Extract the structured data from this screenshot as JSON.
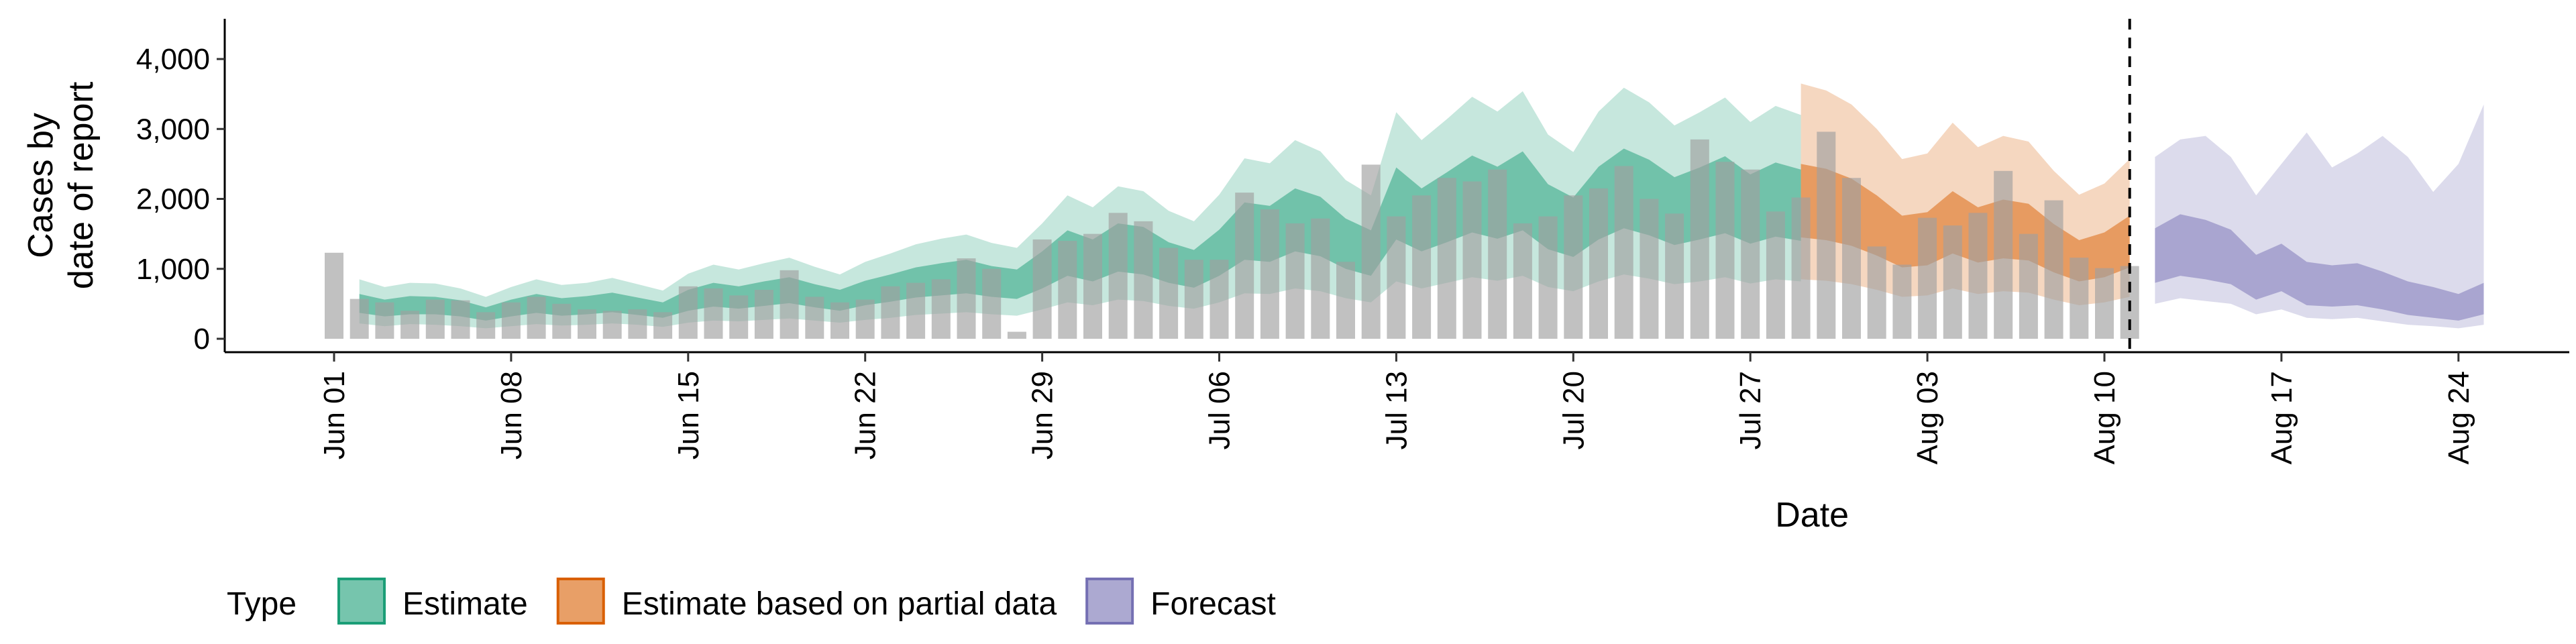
{
  "chart_data": {
    "type": "bar",
    "xlabel": "Date",
    "ylabel": [
      "Cases by",
      "date of report"
    ],
    "ylim": [
      0,
      4500
    ],
    "y_ticks": [
      0,
      1000,
      2000,
      3000,
      4000
    ],
    "y_tick_labels": [
      "0",
      "1,000",
      "2,000",
      "3,000",
      "4,000"
    ],
    "x_tick_labels": [
      "Jun 01",
      "Jun 08",
      "Jun 15",
      "Jun 22",
      "Jun 29",
      "Jul 06",
      "Jul 13",
      "Jul 20",
      "Jul 27",
      "Aug 03",
      "Aug 10",
      "Aug 17",
      "Aug 24"
    ],
    "start_date": "2020-06-01",
    "grid": false,
    "reference_line_date": "2020-08-11",
    "observed_cases": {
      "dates": [
        "2020-06-01",
        "2020-06-02",
        "2020-06-03",
        "2020-06-04",
        "2020-06-05",
        "2020-06-06",
        "2020-06-07",
        "2020-06-08",
        "2020-06-09",
        "2020-06-10",
        "2020-06-11",
        "2020-06-12",
        "2020-06-13",
        "2020-06-14",
        "2020-06-15",
        "2020-06-16",
        "2020-06-17",
        "2020-06-18",
        "2020-06-19",
        "2020-06-20",
        "2020-06-21",
        "2020-06-22",
        "2020-06-23",
        "2020-06-24",
        "2020-06-25",
        "2020-06-26",
        "2020-06-27",
        "2020-06-28",
        "2020-06-29",
        "2020-06-30",
        "2020-07-01",
        "2020-07-02",
        "2020-07-03",
        "2020-07-04",
        "2020-07-05",
        "2020-07-06",
        "2020-07-07",
        "2020-07-08",
        "2020-07-09",
        "2020-07-10",
        "2020-07-11",
        "2020-07-12",
        "2020-07-13",
        "2020-07-14",
        "2020-07-15",
        "2020-07-16",
        "2020-07-17",
        "2020-07-18",
        "2020-07-19",
        "2020-07-20",
        "2020-07-21",
        "2020-07-22",
        "2020-07-23",
        "2020-07-24",
        "2020-07-25",
        "2020-07-26",
        "2020-07-27",
        "2020-07-28",
        "2020-07-29",
        "2020-07-30",
        "2020-07-31",
        "2020-08-01",
        "2020-08-02",
        "2020-08-03",
        "2020-08-04",
        "2020-08-05",
        "2020-08-06",
        "2020-08-07",
        "2020-08-08",
        "2020-08-09",
        "2020-08-10",
        "2020-08-11"
      ],
      "values": [
        1230,
        570,
        520,
        400,
        560,
        550,
        380,
        520,
        600,
        500,
        420,
        400,
        420,
        380,
        750,
        720,
        620,
        700,
        980,
        600,
        520,
        560,
        750,
        800,
        850,
        1150,
        1000,
        100,
        1420,
        1400,
        1500,
        1800,
        1680,
        1300,
        1130,
        1130,
        2090,
        1850,
        1650,
        1720,
        1100,
        2490,
        1750,
        2050,
        2300,
        2250,
        2420,
        1650,
        1750,
        2050,
        2150,
        2470,
        2000,
        1790,
        2850,
        2530,
        2420,
        1820,
        2020,
        2960,
        2300,
        1320,
        1060,
        1730,
        1620,
        1800,
        2400,
        1500,
        1980,
        1160,
        1010,
        1040
      ]
    },
    "series": [
      {
        "name": "Estimate",
        "color": "#1b9e77",
        "dates": [
          "2020-06-02",
          "2020-06-03",
          "2020-06-04",
          "2020-06-05",
          "2020-06-06",
          "2020-06-07",
          "2020-06-08",
          "2020-06-09",
          "2020-06-10",
          "2020-06-11",
          "2020-06-12",
          "2020-06-13",
          "2020-06-14",
          "2020-06-15",
          "2020-06-16",
          "2020-06-17",
          "2020-06-18",
          "2020-06-19",
          "2020-06-20",
          "2020-06-21",
          "2020-06-22",
          "2020-06-23",
          "2020-06-24",
          "2020-06-25",
          "2020-06-26",
          "2020-06-27",
          "2020-06-28",
          "2020-06-29",
          "2020-06-30",
          "2020-07-01",
          "2020-07-02",
          "2020-07-03",
          "2020-07-04",
          "2020-07-05",
          "2020-07-06",
          "2020-07-07",
          "2020-07-08",
          "2020-07-09",
          "2020-07-10",
          "2020-07-11",
          "2020-07-12",
          "2020-07-13",
          "2020-07-14",
          "2020-07-15",
          "2020-07-16",
          "2020-07-17",
          "2020-07-18",
          "2020-07-19",
          "2020-07-20",
          "2020-07-21",
          "2020-07-22",
          "2020-07-23",
          "2020-07-24",
          "2020-07-25",
          "2020-07-26",
          "2020-07-27",
          "2020-07-28",
          "2020-07-29"
        ],
        "lower_90": [
          220,
          180,
          210,
          200,
          180,
          150,
          180,
          210,
          190,
          200,
          220,
          200,
          170,
          230,
          260,
          250,
          270,
          290,
          260,
          230,
          270,
          300,
          340,
          360,
          380,
          350,
          330,
          420,
          520,
          480,
          560,
          540,
          470,
          430,
          520,
          650,
          640,
          720,
          680,
          580,
          520,
          820,
          720,
          800,
          880,
          830,
          900,
          740,
          680,
          820,
          920,
          860,
          780,
          820,
          880,
          790,
          850,
          820
        ],
        "lower_50": [
          370,
          320,
          350,
          350,
          320,
          260,
          320,
          370,
          330,
          350,
          380,
          340,
          300,
          400,
          460,
          430,
          470,
          510,
          450,
          400,
          480,
          530,
          590,
          620,
          650,
          600,
          570,
          720,
          900,
          820,
          960,
          920,
          800,
          730,
          900,
          1130,
          1100,
          1250,
          1180,
          1000,
          900,
          1420,
          1250,
          1380,
          1520,
          1430,
          1550,
          1280,
          1170,
          1420,
          1580,
          1480,
          1340,
          1420,
          1510,
          1360,
          1460,
          1400
        ],
        "upper_50": [
          640,
          560,
          610,
          600,
          550,
          450,
          560,
          640,
          580,
          610,
          660,
          590,
          520,
          700,
          800,
          750,
          820,
          880,
          780,
          700,
          830,
          920,
          1020,
          1080,
          1130,
          1040,
          990,
          1250,
          1550,
          1420,
          1650,
          1600,
          1380,
          1270,
          1560,
          1950,
          1900,
          2150,
          2030,
          1720,
          1550,
          2450,
          2150,
          2380,
          2620,
          2460,
          2680,
          2210,
          2020,
          2460,
          2720,
          2560,
          2310,
          2450,
          2610,
          2350,
          2520,
          2420
        ],
        "upper_90": [
          850,
          740,
          800,
          790,
          720,
          600,
          740,
          850,
          770,
          800,
          870,
          780,
          690,
          930,
          1060,
          990,
          1080,
          1160,
          1030,
          920,
          1100,
          1220,
          1350,
          1430,
          1490,
          1370,
          1300,
          1650,
          2050,
          1880,
          2180,
          2110,
          1830,
          1680,
          2060,
          2580,
          2510,
          2840,
          2680,
          2270,
          2050,
          3240,
          2840,
          3140,
          3460,
          3250,
          3540,
          2920,
          2670,
          3250,
          3590,
          3380,
          3050,
          3240,
          3450,
          3100,
          3330,
          3200
        ]
      },
      {
        "name": "Estimate based on partial data",
        "color": "#d95f02",
        "dates": [
          "2020-07-29",
          "2020-07-30",
          "2020-07-31",
          "2020-08-01",
          "2020-08-02",
          "2020-08-03",
          "2020-08-04",
          "2020-08-05",
          "2020-08-06",
          "2020-08-07",
          "2020-08-08",
          "2020-08-09",
          "2020-08-10",
          "2020-08-11"
        ],
        "lower_90": [
          850,
          830,
          780,
          700,
          600,
          620,
          720,
          640,
          680,
          660,
          560,
          480,
          520,
          600
        ],
        "lower_50": [
          1450,
          1410,
          1330,
          1190,
          1020,
          1050,
          1220,
          1090,
          1150,
          1120,
          950,
          820,
          880,
          1020
        ],
        "upper_50": [
          2500,
          2430,
          2290,
          2050,
          1760,
          1810,
          2110,
          1880,
          1990,
          1930,
          1640,
          1410,
          1520,
          1760
        ],
        "upper_90": [
          3650,
          3550,
          3350,
          3000,
          2570,
          2650,
          3090,
          2740,
          2900,
          2820,
          2400,
          2060,
          2220,
          2570
        ]
      },
      {
        "name": "Forecast",
        "color": "#7570b3",
        "dates": [
          "2020-08-12",
          "2020-08-13",
          "2020-08-14",
          "2020-08-15",
          "2020-08-16",
          "2020-08-17",
          "2020-08-18",
          "2020-08-19",
          "2020-08-20",
          "2020-08-21",
          "2020-08-22",
          "2020-08-23",
          "2020-08-24",
          "2020-08-25"
        ],
        "lower_90": [
          500,
          580,
          540,
          500,
          350,
          420,
          300,
          280,
          300,
          250,
          200,
          180,
          150,
          200
        ],
        "lower_50": [
          800,
          900,
          850,
          780,
          560,
          680,
          480,
          460,
          480,
          420,
          340,
          300,
          260,
          350
        ],
        "upper_50": [
          1580,
          1780,
          1700,
          1560,
          1200,
          1360,
          1100,
          1050,
          1080,
          960,
          820,
          740,
          640,
          800
        ],
        "upper_90": [
          2600,
          2850,
          2900,
          2600,
          2050,
          2500,
          2950,
          2450,
          2650,
          2900,
          2600,
          2100,
          2500,
          3350
        ]
      }
    ],
    "legend": {
      "title": "Type",
      "position": "bottom",
      "items": [
        {
          "label": "Estimate",
          "color": "#1b9e77"
        },
        {
          "label": "Estimate based on partial data",
          "color": "#d95f02"
        },
        {
          "label": "Forecast",
          "color": "#7570b3"
        }
      ]
    }
  }
}
